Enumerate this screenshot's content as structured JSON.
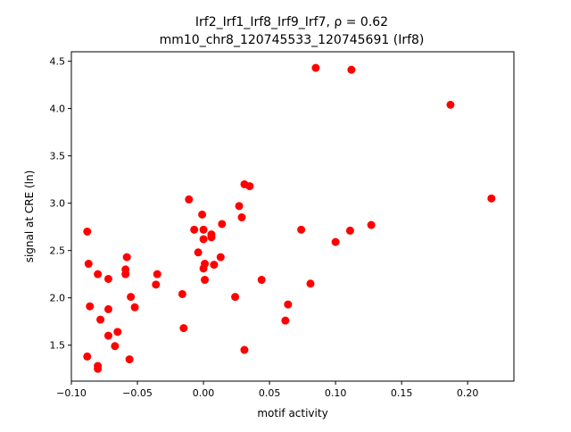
{
  "chart_data": {
    "type": "scatter",
    "title_line1": "Irf2_Irf1_Irf8_Irf9_Irf7, ρ = 0.62",
    "title_line2": "mm10_chr8_120745533_120745691 (Irf8)",
    "xlabel": "motif activity",
    "ylabel": "signal at CRE (ln)",
    "xlim": [
      -0.1,
      0.235
    ],
    "ylim": [
      1.12,
      4.6
    ],
    "x_ticks": [
      -0.1,
      -0.05,
      0.0,
      0.05,
      0.1,
      0.15,
      0.2
    ],
    "x_tick_labels": [
      "−0.10",
      "−0.05",
      "0.00",
      "0.05",
      "0.10",
      "0.15",
      "0.20"
    ],
    "y_ticks": [
      1.5,
      2.0,
      2.5,
      3.0,
      3.5,
      4.0,
      4.5
    ],
    "y_tick_labels": [
      "1.5",
      "2.0",
      "2.5",
      "3.0",
      "3.5",
      "4.0",
      "4.5"
    ],
    "marker_color": "#ff0000",
    "grid": false,
    "legend": "none",
    "points": [
      {
        "x": 0.085,
        "y": 4.43
      },
      {
        "x": 0.112,
        "y": 4.41
      },
      {
        "x": 0.187,
        "y": 4.04
      },
      {
        "x": 0.218,
        "y": 3.05
      },
      {
        "x": 0.127,
        "y": 2.77
      },
      {
        "x": 0.111,
        "y": 2.71
      },
      {
        "x": 0.1,
        "y": 2.59
      },
      {
        "x": 0.074,
        "y": 2.72
      },
      {
        "x": 0.081,
        "y": 2.15
      },
      {
        "x": 0.064,
        "y": 1.93
      },
      {
        "x": 0.062,
        "y": 1.76
      },
      {
        "x": 0.044,
        "y": 2.19
      },
      {
        "x": 0.031,
        "y": 1.45
      },
      {
        "x": 0.031,
        "y": 3.2
      },
      {
        "x": 0.035,
        "y": 3.18
      },
      {
        "x": 0.027,
        "y": 2.97
      },
      {
        "x": 0.029,
        "y": 2.85
      },
      {
        "x": 0.024,
        "y": 2.01
      },
      {
        "x": 0.014,
        "y": 2.78
      },
      {
        "x": 0.013,
        "y": 2.43
      },
      {
        "x": 0.008,
        "y": 2.35
      },
      {
        "x": 0.006,
        "y": 2.67
      },
      {
        "x": 0.006,
        "y": 2.64
      },
      {
        "x": -0.001,
        "y": 2.88
      },
      {
        "x": 0.0,
        "y": 2.72
      },
      {
        "x": 0.0,
        "y": 2.62
      },
      {
        "x": 0.001,
        "y": 2.36
      },
      {
        "x": 0.0,
        "y": 2.31
      },
      {
        "x": 0.001,
        "y": 2.19
      },
      {
        "x": -0.004,
        "y": 2.48
      },
      {
        "x": -0.007,
        "y": 2.72
      },
      {
        "x": -0.011,
        "y": 3.04
      },
      {
        "x": -0.016,
        "y": 2.04
      },
      {
        "x": -0.015,
        "y": 1.68
      },
      {
        "x": -0.035,
        "y": 2.25
      },
      {
        "x": -0.036,
        "y": 2.14
      },
      {
        "x": -0.052,
        "y": 1.9
      },
      {
        "x": -0.055,
        "y": 2.01
      },
      {
        "x": -0.058,
        "y": 2.43
      },
      {
        "x": -0.059,
        "y": 2.3
      },
      {
        "x": -0.059,
        "y": 2.25
      },
      {
        "x": -0.056,
        "y": 1.35
      },
      {
        "x": -0.065,
        "y": 1.64
      },
      {
        "x": -0.067,
        "y": 1.49
      },
      {
        "x": -0.072,
        "y": 2.2
      },
      {
        "x": -0.072,
        "y": 1.88
      },
      {
        "x": -0.072,
        "y": 1.6
      },
      {
        "x": -0.078,
        "y": 1.77
      },
      {
        "x": -0.08,
        "y": 2.25
      },
      {
        "x": -0.08,
        "y": 1.28
      },
      {
        "x": -0.08,
        "y": 1.25
      },
      {
        "x": -0.086,
        "y": 1.91
      },
      {
        "x": -0.088,
        "y": 2.7
      },
      {
        "x": -0.087,
        "y": 2.36
      },
      {
        "x": -0.088,
        "y": 1.38
      }
    ]
  }
}
